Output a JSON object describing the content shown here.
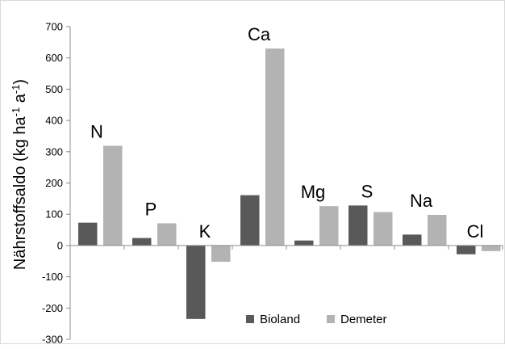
{
  "chart_data": {
    "type": "bar",
    "categories": [
      "N",
      "P",
      "K",
      "Ca",
      "Mg",
      "S",
      "Na",
      "Cl"
    ],
    "series": [
      {
        "name": "Bioland",
        "color": "#595959",
        "values": [
          73,
          24,
          -235,
          161,
          16,
          128,
          35,
          -28
        ]
      },
      {
        "name": "Demeter",
        "color": "#b3b3b3",
        "values": [
          319,
          71,
          -52,
          630,
          126,
          107,
          98,
          -18
        ]
      }
    ],
    "ylabel": "Nährstoffsaldo (kg ha-1 a-1)",
    "ylabel_parts": {
      "main": "Nährstoffsaldo (kg ha",
      "sup1": "-1",
      "mid": " a",
      "sup2": "-1",
      "end": ")"
    },
    "ylim": [
      -300,
      700
    ],
    "yticks": [
      -300,
      -200,
      -100,
      0,
      100,
      200,
      300,
      400,
      500,
      600,
      700
    ],
    "grid": false,
    "legend_position": "bottom-center"
  }
}
